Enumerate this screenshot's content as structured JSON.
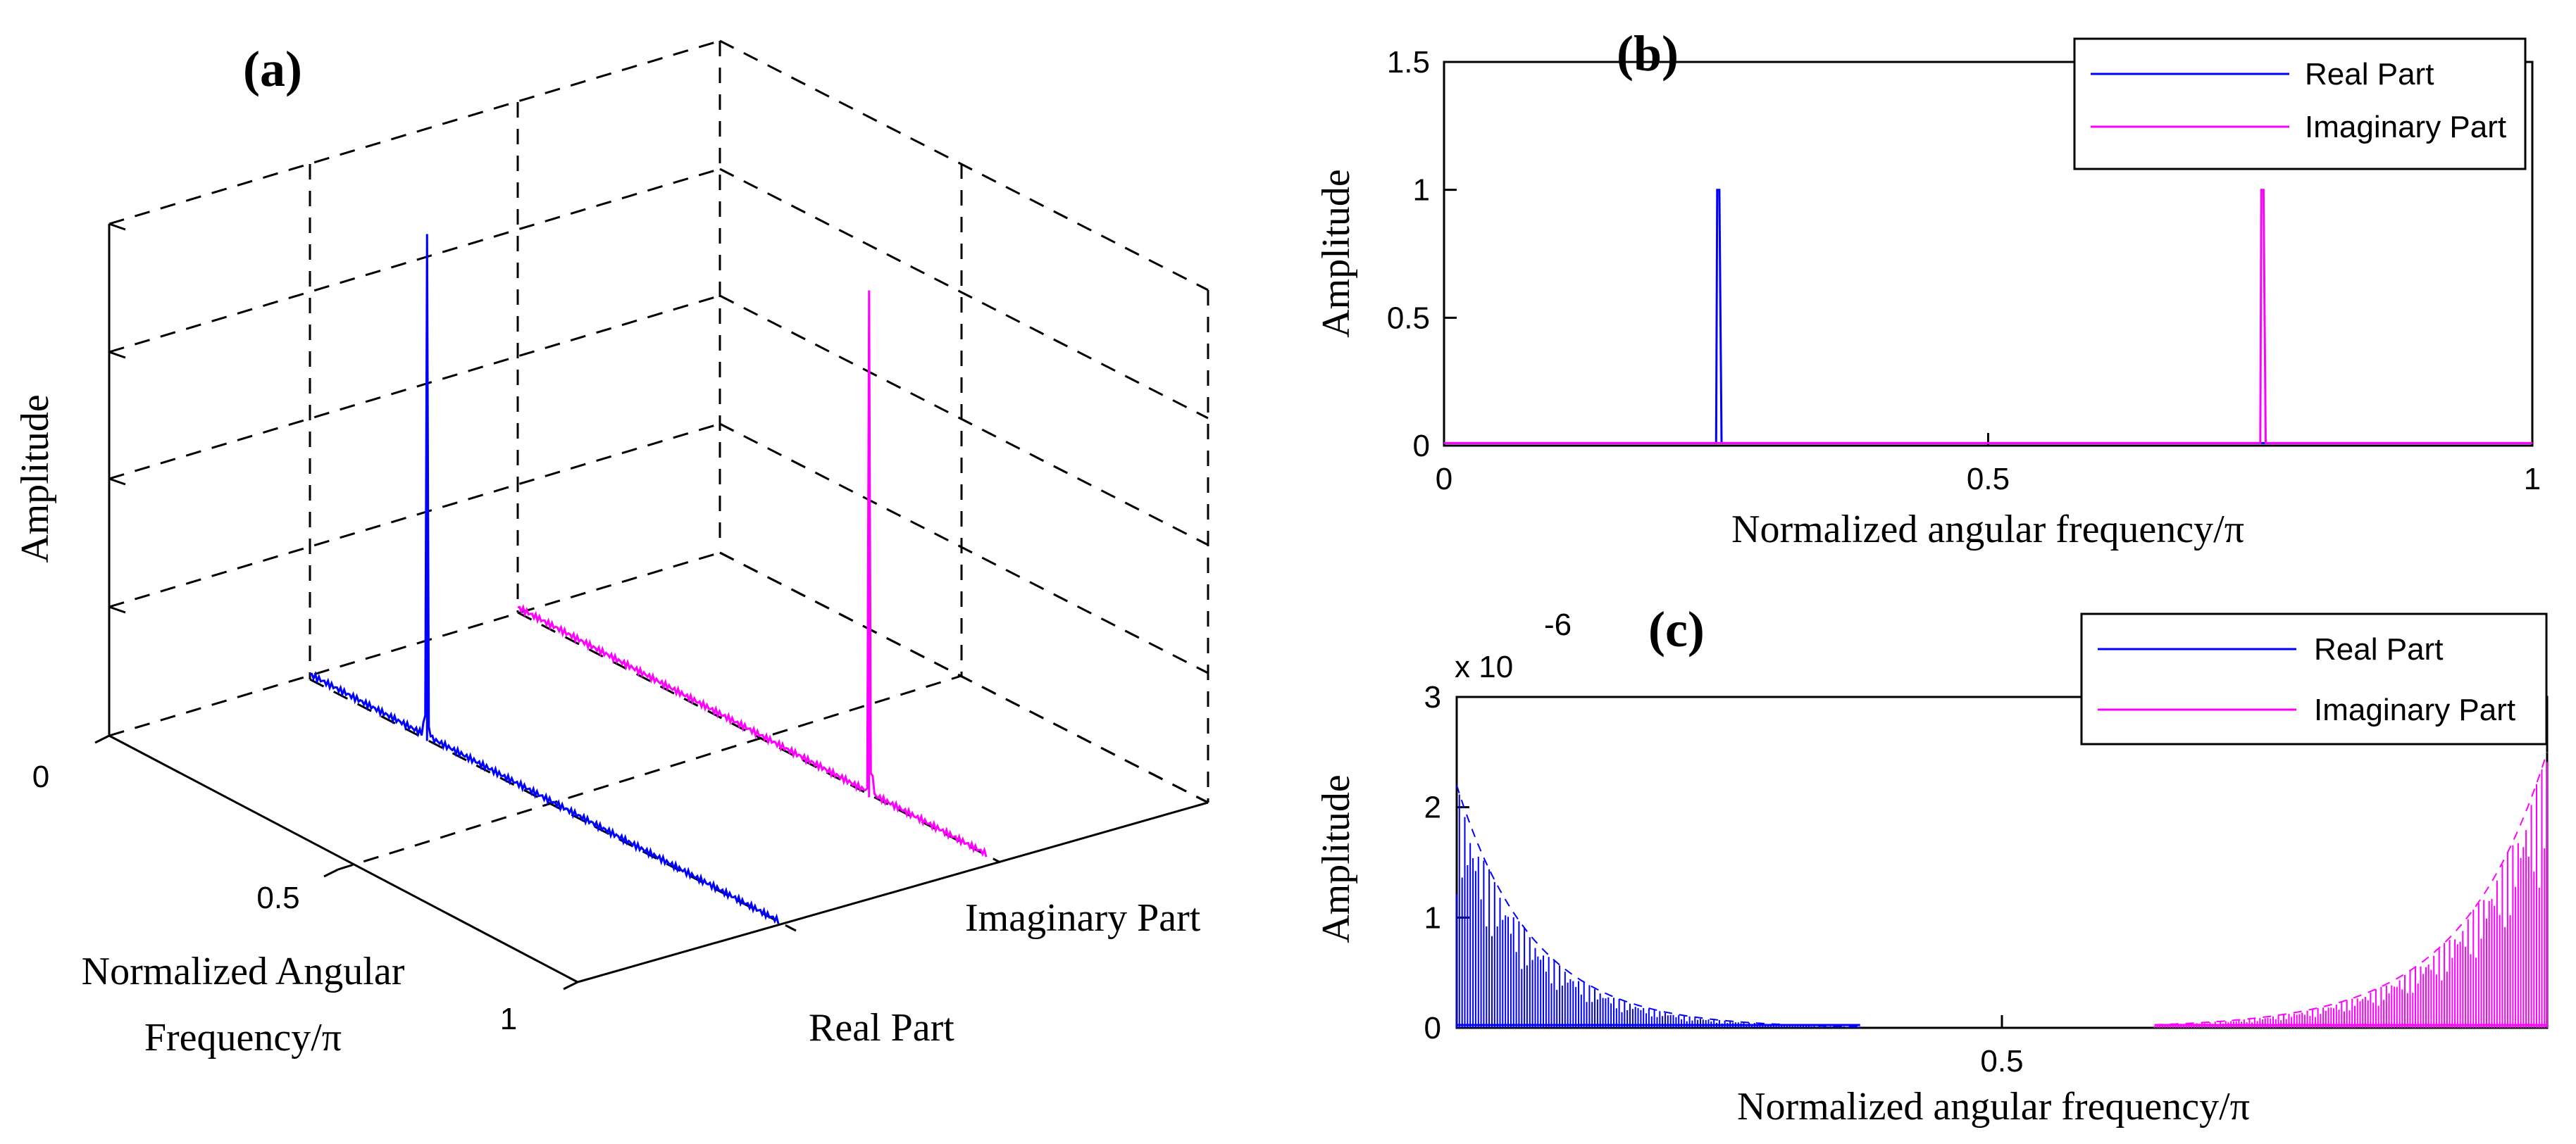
{
  "colors": {
    "real": "#0000ff",
    "imag": "#ff00ff",
    "axis": "#000000"
  },
  "chart_data": [
    {
      "id": "a",
      "panel_label": "(a)",
      "type": "line3d",
      "title": "",
      "zlabel": "Amplitude",
      "xlabel_line1": "Normalized Angular",
      "xlabel_line2": "Frequency/π",
      "x_ticks": [
        "0",
        "0.5",
        "1"
      ],
      "series_labels": [
        "Real Part",
        "Imaginary Part"
      ],
      "series": [
        {
          "name": "Real Part",
          "peak_x": 0.25,
          "peak_value": 1,
          "baseline": 0.01
        },
        {
          "name": "Imaginary Part",
          "peak_x": 0.75,
          "peak_value": 1,
          "baseline": 0.01
        }
      ]
    },
    {
      "id": "b",
      "panel_label": "(b)",
      "type": "line",
      "xlabel": "Normalized angular frequency/π",
      "ylabel": "Amplitude",
      "xlim": [
        0,
        1
      ],
      "ylim": [
        0,
        1.5
      ],
      "x_ticks": [
        0,
        0.5,
        1
      ],
      "x_tick_labels": [
        "0",
        "0.5",
        "1"
      ],
      "y_ticks": [
        0,
        0.5,
        1,
        1.5
      ],
      "y_tick_labels": [
        "0",
        "0.5",
        "1",
        "1.5"
      ],
      "legend": [
        "Real Part",
        "Imaginary Part"
      ],
      "legend_position": "top-right",
      "series": [
        {
          "name": "Real Part",
          "x": [
            0,
            0.25,
            0.251,
            0.253,
            0.255,
            0.5,
            1
          ],
          "y": [
            0.01,
            0.01,
            1,
            1,
            0.01,
            0.01,
            0.01
          ]
        },
        {
          "name": "Imaginary Part",
          "x": [
            0,
            0.5,
            0.75,
            0.751,
            0.753,
            0.755,
            1
          ],
          "y": [
            0.01,
            0.01,
            0.01,
            1,
            1,
            0.01,
            0.01
          ]
        }
      ]
    },
    {
      "id": "c",
      "panel_label": "(c)",
      "type": "line",
      "xlabel": "Normalized angular frequency/π",
      "ylabel": "Amplitude",
      "xlim": [
        0,
        1
      ],
      "ylim": [
        0,
        3
      ],
      "y_scale_label": "x 10",
      "y_scale_exponent": "-6",
      "x_ticks": [
        0.5
      ],
      "x_tick_labels": [
        "0.5"
      ],
      "y_ticks": [
        0,
        1,
        2,
        3
      ],
      "y_tick_labels": [
        "0",
        "1",
        "2",
        "3"
      ],
      "legend": [
        "Real Part",
        "Imaginary Part"
      ],
      "legend_position": "top-right",
      "series": [
        {
          "name": "Real Part",
          "x_range": [
            0,
            0.37
          ],
          "peak": 2.2,
          "decay": 0.07
        },
        {
          "name": "Imaginary Part",
          "x_range": [
            0.64,
            1
          ],
          "peak": 2.5,
          "decay": 0.08
        }
      ]
    }
  ]
}
